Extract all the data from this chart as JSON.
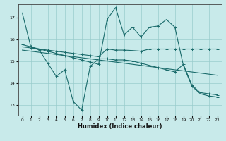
{
  "xlabel": "Humidex (Indice chaleur)",
  "background_color": "#c8eaea",
  "grid_color": "#99cccc",
  "line_color": "#1a6b6b",
  "xlim": [
    -0.5,
    23.5
  ],
  "ylim": [
    12.5,
    17.6
  ],
  "yticks": [
    13,
    14,
    15,
    16,
    17
  ],
  "xticks": [
    0,
    1,
    2,
    3,
    4,
    5,
    6,
    7,
    8,
    9,
    10,
    11,
    12,
    13,
    14,
    15,
    16,
    17,
    18,
    19,
    20,
    21,
    22,
    23
  ],
  "line1_x": [
    0,
    1,
    2,
    3,
    4,
    5,
    6,
    7,
    8,
    9,
    10,
    11,
    12,
    13,
    14,
    15,
    16,
    17,
    18,
    19,
    20,
    21,
    22,
    23
  ],
  "line1_y": [
    17.2,
    15.65,
    15.5,
    14.9,
    14.3,
    14.6,
    13.15,
    12.75,
    14.75,
    15.1,
    15.1,
    15.05,
    15.05,
    15.0,
    14.9,
    14.8,
    14.7,
    14.6,
    14.5,
    14.85,
    13.9,
    13.55,
    13.5,
    13.45
  ],
  "line2_x": [
    0,
    1,
    2,
    3,
    4,
    5,
    6,
    7,
    8,
    9,
    10,
    11,
    12,
    13,
    14,
    15,
    16,
    17,
    18,
    19,
    20,
    21,
    22,
    23
  ],
  "line2_y": [
    15.65,
    15.6,
    15.55,
    15.5,
    15.45,
    15.4,
    15.35,
    15.3,
    15.25,
    15.2,
    15.55,
    15.5,
    15.5,
    15.48,
    15.45,
    15.55,
    15.55,
    15.55,
    15.55,
    15.55,
    15.55,
    15.55,
    15.55,
    15.55
  ],
  "line3_x": [
    0,
    1,
    2,
    3,
    4,
    5,
    6,
    7,
    8,
    9,
    10,
    11,
    12,
    13,
    14,
    15,
    16,
    17,
    18,
    19,
    20,
    21,
    22,
    23
  ],
  "line3_y": [
    15.5,
    15.45,
    15.4,
    15.35,
    15.3,
    15.25,
    15.2,
    15.15,
    15.1,
    15.05,
    15.0,
    14.95,
    14.9,
    14.85,
    14.8,
    14.75,
    14.7,
    14.65,
    14.6,
    14.55,
    14.5,
    14.45,
    14.4,
    14.35
  ],
  "line4_x": [
    0,
    1,
    2,
    3,
    4,
    5,
    6,
    7,
    8,
    9,
    10,
    11,
    12,
    13,
    14,
    15,
    16,
    17,
    18,
    19,
    20,
    21,
    22,
    23
  ],
  "line4_y": [
    15.75,
    15.65,
    15.55,
    15.45,
    15.35,
    15.25,
    15.15,
    15.05,
    14.95,
    14.85,
    16.9,
    17.45,
    16.2,
    16.55,
    16.1,
    16.55,
    16.6,
    16.9,
    16.55,
    14.8,
    13.85,
    13.5,
    13.4,
    13.35
  ]
}
